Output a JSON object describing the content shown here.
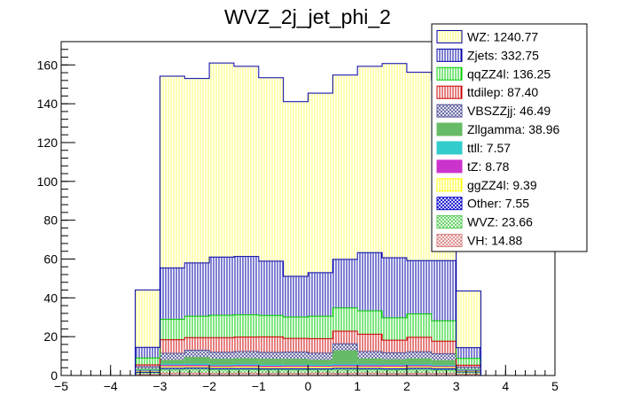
{
  "chart_data": {
    "type": "bar",
    "stacked": true,
    "title": "WVZ_2j_jet_phi_2",
    "xlabel": "",
    "ylabel": "",
    "xlim": [
      -5,
      5
    ],
    "ylim": [
      0,
      172
    ],
    "x_ticks": [
      -5,
      -4,
      -3,
      -2,
      -1,
      0,
      1,
      2,
      3,
      4,
      5
    ],
    "y_ticks": [
      0,
      20,
      40,
      60,
      80,
      100,
      120,
      140,
      160
    ],
    "bin_edges": [
      -3.5,
      -3.0,
      -2.5,
      -2.0,
      -1.5,
      -1.0,
      -0.5,
      0.0,
      0.5,
      1.0,
      1.5,
      2.0,
      2.5,
      3.0,
      3.5
    ],
    "legend_position": "top-right",
    "series": [
      {
        "name": "VH: 14.88",
        "color": "#d98080",
        "pattern": "cross",
        "values": [
          0.5,
          1.2,
          1.2,
          1.1,
          1.2,
          1.0,
          1.1,
          1.2,
          1.1,
          1.2,
          1.0,
          1.1,
          1.1,
          0.6
        ]
      },
      {
        "name": "WVZ: 23.66",
        "color": "#55cc55",
        "pattern": "cross",
        "values": [
          0.9,
          1.9,
          2.0,
          1.9,
          1.8,
          1.9,
          1.8,
          1.7,
          2.0,
          1.8,
          1.9,
          2.0,
          1.7,
          1.1
        ]
      },
      {
        "name": "Other: 7.55",
        "color": "#0000cc",
        "pattern": "cross",
        "values": [
          0.3,
          0.6,
          0.6,
          0.6,
          0.6,
          0.5,
          0.6,
          0.5,
          0.6,
          0.6,
          0.6,
          0.6,
          0.6,
          0.2
        ]
      },
      {
        "name": "ggZZ4l: 9.39",
        "color": "#ffff00",
        "pattern": "vlines",
        "values": [
          0.4,
          0.8,
          0.7,
          0.7,
          0.8,
          0.7,
          0.7,
          0.8,
          0.7,
          0.7,
          0.8,
          0.7,
          0.7,
          0.3
        ]
      },
      {
        "name": "tZ: 8.78",
        "color": "#cc33cc",
        "pattern": "solid",
        "values": [
          0.3,
          0.7,
          0.7,
          0.6,
          0.7,
          0.7,
          0.7,
          0.6,
          0.7,
          0.7,
          0.7,
          0.7,
          0.6,
          0.3
        ]
      },
      {
        "name": "ttll: 7.57",
        "color": "#33cccc",
        "pattern": "solid",
        "values": [
          0.3,
          0.6,
          0.6,
          0.5,
          0.6,
          0.6,
          0.5,
          0.6,
          0.6,
          0.6,
          0.6,
          0.5,
          0.5,
          0.3
        ]
      },
      {
        "name": "Zllgamma: 38.96",
        "color": "#66bb66",
        "pattern": "solid",
        "values": [
          0.6,
          2.0,
          3.5,
          3.0,
          3.0,
          3.0,
          3.0,
          2.5,
          7.0,
          3.0,
          2.5,
          3.0,
          2.5,
          0.4
        ]
      },
      {
        "name": "VBSZZjj: 46.49",
        "color": "#555599",
        "pattern": "cross",
        "values": [
          1.2,
          3.6,
          3.7,
          3.6,
          3.6,
          3.5,
          3.7,
          3.6,
          3.6,
          3.7,
          3.6,
          3.6,
          3.5,
          1.1
        ]
      },
      {
        "name": "ttdilep: 87.40",
        "color": "#cc0000",
        "pattern": "vlines",
        "values": [
          1.0,
          7.0,
          6.5,
          7.5,
          7.5,
          8.0,
          7.0,
          7.5,
          6.5,
          9.0,
          6.5,
          7.5,
          6.5,
          1.0
        ]
      },
      {
        "name": "qqZZ4l: 136.25",
        "color": "#00cc00",
        "pattern": "vlines",
        "values": [
          3.5,
          10.5,
          11.0,
          11.5,
          11.5,
          11.0,
          11.0,
          11.5,
          12.0,
          12.0,
          11.5,
          12.0,
          10.5,
          3.5
        ]
      },
      {
        "name": "Zjets: 332.75",
        "color": "#0000aa",
        "pattern": "vlines",
        "values": [
          5.5,
          26.5,
          27.5,
          30.0,
          30.0,
          28.0,
          21.0,
          22.5,
          25.0,
          30.0,
          31.0,
          27.5,
          31.0,
          5.5
        ]
      },
      {
        "name": "WZ: 1240.77",
        "color": "#ffff66",
        "pattern": "vlines",
        "values": [
          29.6,
          98.8,
          95.0,
          100.0,
          98.0,
          94.5,
          90.0,
          92.5,
          95.0,
          96.0,
          100.0,
          97.0,
          93.0,
          29.2
        ]
      }
    ]
  }
}
